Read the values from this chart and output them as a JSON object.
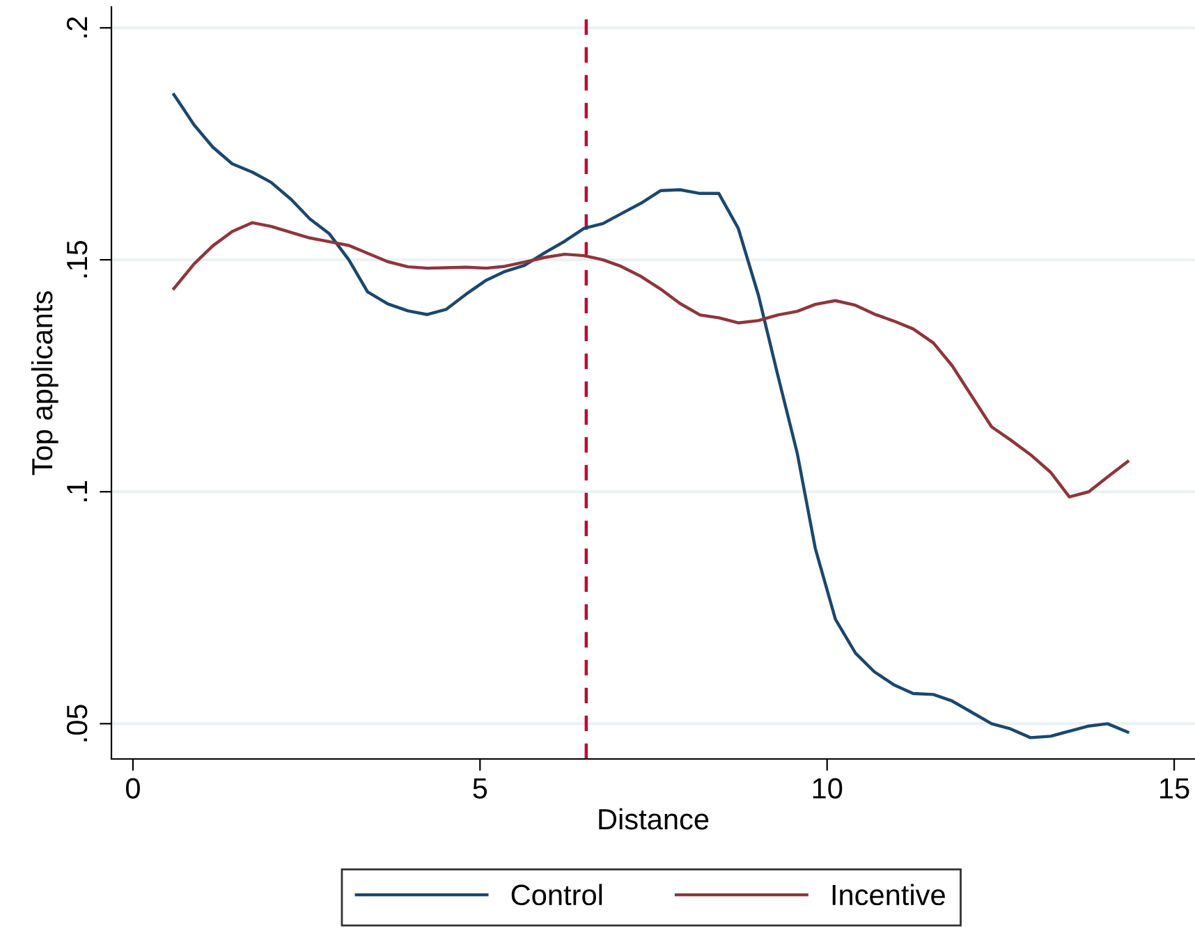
{
  "chart_data": {
    "type": "line",
    "xlabel": "Distance",
    "ylabel": "Top applicants",
    "xlim": [
      -0.31,
      15.3
    ],
    "ylim": [
      0.0424,
      0.2045
    ],
    "xticks": [
      0,
      5,
      10,
      15
    ],
    "yticks": [
      {
        "value": 0.05,
        "label": ".05"
      },
      {
        "value": 0.1,
        "label": ".1"
      },
      {
        "value": 0.15,
        "label": ".15"
      },
      {
        "value": 0.2,
        "label": ".2"
      }
    ],
    "grid": "y",
    "legend": "bottom",
    "line_style": "solid",
    "marker": "none",
    "ref_lines": [
      {
        "axis": "x",
        "value": 6.53,
        "color": "#c10534",
        "line_style": "dashed"
      }
    ],
    "series": [
      {
        "name": "Control",
        "color": "#1a476f",
        "x": [
          0.59,
          0.88,
          1.15,
          1.43,
          1.72,
          1.99,
          2.28,
          2.55,
          2.83,
          3.11,
          3.38,
          3.67,
          3.96,
          4.24,
          4.51,
          4.8,
          5.09,
          5.36,
          5.64,
          5.93,
          6.22,
          6.5,
          6.77,
          7.03,
          7.32,
          7.6,
          7.88,
          8.17,
          8.44,
          8.72,
          9.01,
          9.29,
          9.57,
          9.83,
          10.12,
          10.41,
          10.68,
          10.96,
          11.24,
          11.53,
          11.8,
          12.08,
          12.37,
          12.64,
          12.93,
          13.22,
          13.49,
          13.77,
          14.04,
          14.33
        ],
        "values": [
          0.1856,
          0.1791,
          0.1743,
          0.1707,
          0.1689,
          0.1667,
          0.163,
          0.1588,
          0.1556,
          0.15,
          0.1431,
          0.1405,
          0.139,
          0.1382,
          0.1393,
          0.1426,
          0.1456,
          0.1475,
          0.1488,
          0.1515,
          0.154,
          0.1568,
          0.1578,
          0.1599,
          0.1622,
          0.1649,
          0.1651,
          0.1643,
          0.1643,
          0.1568,
          0.1424,
          0.1251,
          0.1083,
          0.0878,
          0.0725,
          0.0652,
          0.0612,
          0.0584,
          0.0565,
          0.0563,
          0.0549,
          0.0525,
          0.05,
          0.0489,
          0.047,
          0.0473,
          0.0484,
          0.0495,
          0.05,
          0.0482
        ]
      },
      {
        "name": "Incentive",
        "color": "#90353b",
        "x": [
          0.59,
          0.88,
          1.15,
          1.43,
          1.72,
          1.99,
          2.28,
          2.55,
          2.83,
          3.11,
          3.38,
          3.67,
          3.96,
          4.24,
          4.51,
          4.8,
          5.09,
          5.36,
          5.64,
          5.93,
          6.22,
          6.5,
          6.77,
          7.03,
          7.32,
          7.6,
          7.88,
          8.17,
          8.44,
          8.72,
          9.01,
          9.29,
          9.57,
          9.83,
          10.12,
          10.41,
          10.68,
          10.96,
          11.24,
          11.53,
          11.8,
          12.08,
          12.37,
          12.64,
          12.93,
          13.22,
          13.49,
          13.77,
          14.04,
          14.33
        ],
        "values": [
          0.1438,
          0.1491,
          0.153,
          0.1561,
          0.158,
          0.1572,
          0.1559,
          0.1547,
          0.1539,
          0.1531,
          0.1514,
          0.1496,
          0.1485,
          0.1482,
          0.1483,
          0.1484,
          0.1482,
          0.1486,
          0.1495,
          0.1505,
          0.1512,
          0.1509,
          0.15,
          0.1486,
          0.1464,
          0.1437,
          0.1406,
          0.1381,
          0.1375,
          0.1364,
          0.1369,
          0.1381,
          0.1389,
          0.1404,
          0.1412,
          0.1402,
          0.1383,
          0.1368,
          0.1351,
          0.1321,
          0.1272,
          0.1207,
          0.114,
          0.1112,
          0.108,
          0.1042,
          0.0989,
          0.1,
          0.1032,
          0.1065
        ]
      }
    ]
  }
}
